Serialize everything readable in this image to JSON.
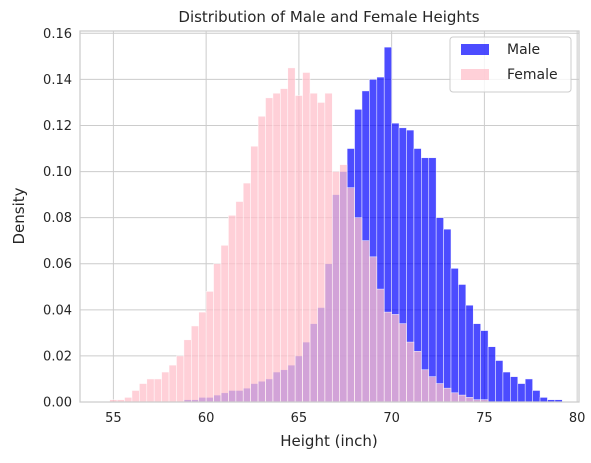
{
  "chart_data": {
    "type": "bar",
    "subtype": "overlapping-histogram",
    "title": "Distribution of Male and Female Heights",
    "xlabel": "Height (inch)",
    "ylabel": "Density",
    "xlim": [
      53.2,
      80.1
    ],
    "ylim": [
      0,
      0.161
    ],
    "xticks": [
      "55",
      "60",
      "65",
      "70",
      "75",
      "80"
    ],
    "xtick_values": [
      55,
      60,
      65,
      70,
      75,
      80
    ],
    "yticks": [
      "0.00",
      "0.02",
      "0.04",
      "0.06",
      "0.08",
      "0.10",
      "0.12",
      "0.14",
      "0.16"
    ],
    "ytick_values": [
      0,
      0.02,
      0.04,
      0.06,
      0.08,
      0.1,
      0.12,
      0.14,
      0.16
    ],
    "grid": true,
    "legend_position": "top-right",
    "series": [
      {
        "name": "Male",
        "color": "#0000ff",
        "opacity": 0.7,
        "bin_width": 0.4,
        "bins": [
          [
            58.8,
            0.001
          ],
          [
            59.2,
            0.001
          ],
          [
            59.6,
            0.002
          ],
          [
            60.0,
            0.002
          ],
          [
            60.4,
            0.003
          ],
          [
            60.8,
            0.004
          ],
          [
            61.2,
            0.005
          ],
          [
            61.6,
            0.005
          ],
          [
            62.0,
            0.006
          ],
          [
            62.4,
            0.008
          ],
          [
            62.8,
            0.009
          ],
          [
            63.2,
            0.01
          ],
          [
            63.6,
            0.013
          ],
          [
            64.0,
            0.014
          ],
          [
            64.4,
            0.016
          ],
          [
            64.8,
            0.02
          ],
          [
            65.2,
            0.026
          ],
          [
            65.6,
            0.034
          ],
          [
            66.0,
            0.041
          ],
          [
            66.4,
            0.06
          ],
          [
            66.8,
            0.09
          ],
          [
            67.2,
            0.1
          ],
          [
            67.6,
            0.11
          ],
          [
            68.0,
            0.127
          ],
          [
            68.4,
            0.135
          ],
          [
            68.8,
            0.14
          ],
          [
            69.2,
            0.141
          ],
          [
            69.6,
            0.154
          ],
          [
            70.0,
            0.121
          ],
          [
            70.4,
            0.119
          ],
          [
            70.8,
            0.118
          ],
          [
            71.2,
            0.11
          ],
          [
            71.6,
            0.106
          ],
          [
            72.0,
            0.106
          ],
          [
            72.4,
            0.08
          ],
          [
            72.8,
            0.075
          ],
          [
            73.2,
            0.058
          ],
          [
            73.6,
            0.051
          ],
          [
            74.0,
            0.042
          ],
          [
            74.4,
            0.034
          ],
          [
            74.8,
            0.031
          ],
          [
            75.2,
            0.024
          ],
          [
            75.6,
            0.018
          ],
          [
            76.0,
            0.013
          ],
          [
            76.4,
            0.011
          ],
          [
            76.8,
            0.008
          ],
          [
            77.2,
            0.01
          ],
          [
            77.6,
            0.005
          ],
          [
            78.0,
            0.002
          ],
          [
            78.4,
            0.001
          ],
          [
            78.8,
            0.001
          ]
        ]
      },
      {
        "name": "Female",
        "color": "#ffc0cb",
        "opacity": 0.75,
        "bin_width": 0.4,
        "bins": [
          [
            54.8,
            0.001
          ],
          [
            55.2,
            0.001
          ],
          [
            55.6,
            0.002
          ],
          [
            56.0,
            0.005
          ],
          [
            56.4,
            0.008
          ],
          [
            56.8,
            0.01
          ],
          [
            57.2,
            0.01
          ],
          [
            57.6,
            0.013
          ],
          [
            58.0,
            0.016
          ],
          [
            58.4,
            0.02
          ],
          [
            58.8,
            0.027
          ],
          [
            59.2,
            0.033
          ],
          [
            59.6,
            0.039
          ],
          [
            60.0,
            0.048
          ],
          [
            60.4,
            0.06
          ],
          [
            60.8,
            0.068
          ],
          [
            61.2,
            0.081
          ],
          [
            61.6,
            0.087
          ],
          [
            62.0,
            0.095
          ],
          [
            62.4,
            0.111
          ],
          [
            62.8,
            0.124
          ],
          [
            63.2,
            0.132
          ],
          [
            63.6,
            0.134
          ],
          [
            64.0,
            0.136
          ],
          [
            64.4,
            0.145
          ],
          [
            64.8,
            0.133
          ],
          [
            65.2,
            0.143
          ],
          [
            65.6,
            0.134
          ],
          [
            66.0,
            0.13
          ],
          [
            66.4,
            0.134
          ],
          [
            66.8,
            0.1
          ],
          [
            67.2,
            0.103
          ],
          [
            67.6,
            0.093
          ],
          [
            68.0,
            0.08
          ],
          [
            68.4,
            0.07
          ],
          [
            68.8,
            0.063
          ],
          [
            69.2,
            0.049
          ],
          [
            69.6,
            0.039
          ],
          [
            70.0,
            0.038
          ],
          [
            70.4,
            0.034
          ],
          [
            70.8,
            0.026
          ],
          [
            71.2,
            0.022
          ],
          [
            71.6,
            0.014
          ],
          [
            72.0,
            0.011
          ],
          [
            72.4,
            0.008
          ],
          [
            72.8,
            0.006
          ],
          [
            73.2,
            0.004
          ],
          [
            73.6,
            0.003
          ],
          [
            74.0,
            0.002
          ],
          [
            74.4,
            0.001
          ],
          [
            74.8,
            0.001
          ]
        ]
      }
    ]
  }
}
